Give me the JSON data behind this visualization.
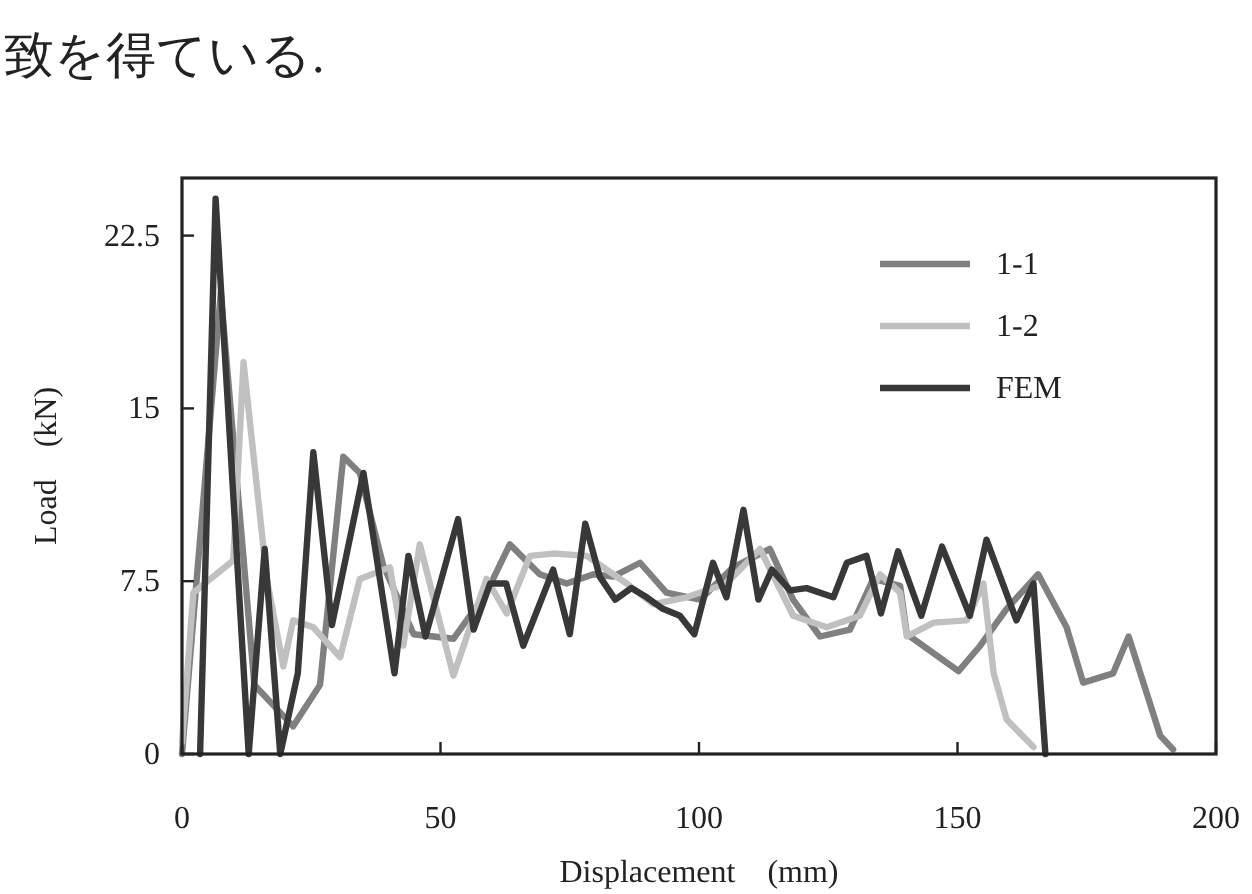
{
  "chart_data": {
    "type": "line",
    "xlabel": "Displacement　(mm)",
    "ylabel": "Load　(kN)",
    "annotations": [
      "致を得ている."
    ],
    "xlim": [
      0,
      200
    ],
    "xticks": [
      0,
      50,
      100,
      150,
      200
    ],
    "ylim": [
      0,
      25
    ],
    "yticks": [
      0,
      7.5,
      15,
      22.5
    ],
    "grid": false,
    "legend": "top right",
    "marker": "none",
    "line_style": "solid",
    "series": [
      {
        "name": "1-1",
        "color": "#808080",
        "x": [
          0,
          7.5,
          14,
          21.5,
          26.7,
          31.2,
          34.4,
          38.9,
          44.8,
          52.5,
          58.9,
          63.4,
          69.2,
          74.4,
          79.6,
          83.4,
          88.6,
          93.7,
          100.2,
          106.6,
          113.7,
          118.2,
          123.4,
          129.2,
          133.7,
          138.9,
          140.2,
          150.2,
          154.4,
          159.5,
          165.6,
          171.1,
          174.3,
          180.1,
          183.1,
          189.2,
          191.7
        ],
        "values": [
          0,
          20,
          3,
          1.2,
          3,
          12.9,
          12.2,
          8.2,
          5.2,
          5,
          7,
          9.1,
          7.8,
          7.4,
          7.8,
          7.7,
          8.3,
          7,
          6.7,
          8.1,
          8.9,
          6.7,
          5.1,
          5.4,
          7.6,
          7.3,
          5.2,
          3.6,
          4.7,
          6.3,
          7.8,
          5.5,
          3.1,
          3.5,
          5.1,
          0.8,
          0.2
        ]
      },
      {
        "name": "1-2",
        "color": "#c0c0c0",
        "x": [
          0,
          2.2,
          9.9,
          11.9,
          16.4,
          19.6,
          21.5,
          25.4,
          30.6,
          34.4,
          40.2,
          42.8,
          46,
          52.5,
          58.9,
          62.8,
          67.3,
          71.8,
          78.3,
          86,
          91.2,
          97.6,
          105.3,
          111.8,
          118.2,
          124.7,
          131.1,
          135,
          138.9,
          140.2,
          145.4,
          151.8,
          155,
          157,
          159.5,
          164.7
        ],
        "values": [
          0.5,
          7,
          8.4,
          17,
          7.6,
          3.8,
          5.8,
          5.5,
          4.2,
          7.6,
          8.1,
          4.7,
          9.1,
          3.4,
          7.6,
          6.1,
          8.6,
          8.7,
          8.6,
          7.4,
          6.5,
          6.8,
          7.4,
          8.9,
          6,
          5.5,
          6,
          7.8,
          7,
          5.1,
          5.7,
          5.8,
          7.4,
          3.5,
          1.5,
          0.3
        ]
      },
      {
        "name": "FEM",
        "color": "#383838",
        "x": [
          3.5,
          6.5,
          12.9,
          16,
          19,
          22.4,
          25.4,
          29,
          35.1,
          41.1,
          43.8,
          47.1,
          53.4,
          56.4,
          59.6,
          62.7,
          66,
          71.8,
          75,
          78,
          80.8,
          83.8,
          86.9,
          89.9,
          93,
          96.3,
          99.1,
          102.7,
          105.3,
          108.6,
          111.5,
          114.1,
          117.6,
          120.8,
          126,
          128.6,
          132.4,
          135.2,
          138.5,
          143,
          147,
          152.4,
          155.6,
          161.4,
          164.7,
          167
        ],
        "values": [
          0,
          24.1,
          0,
          8.9,
          0,
          3.5,
          13.1,
          5.6,
          12.2,
          3.5,
          8.6,
          5.1,
          10.2,
          5.4,
          7.4,
          7.4,
          4.7,
          8,
          5.2,
          10,
          7.7,
          6.7,
          7.2,
          6.8,
          6.3,
          6,
          5.2,
          8.3,
          6.8,
          10.6,
          6.7,
          8,
          7.1,
          7.2,
          6.8,
          8.3,
          8.6,
          6.1,
          8.8,
          6,
          9,
          6,
          9.3,
          5.8,
          7.4,
          0
        ]
      }
    ]
  }
}
